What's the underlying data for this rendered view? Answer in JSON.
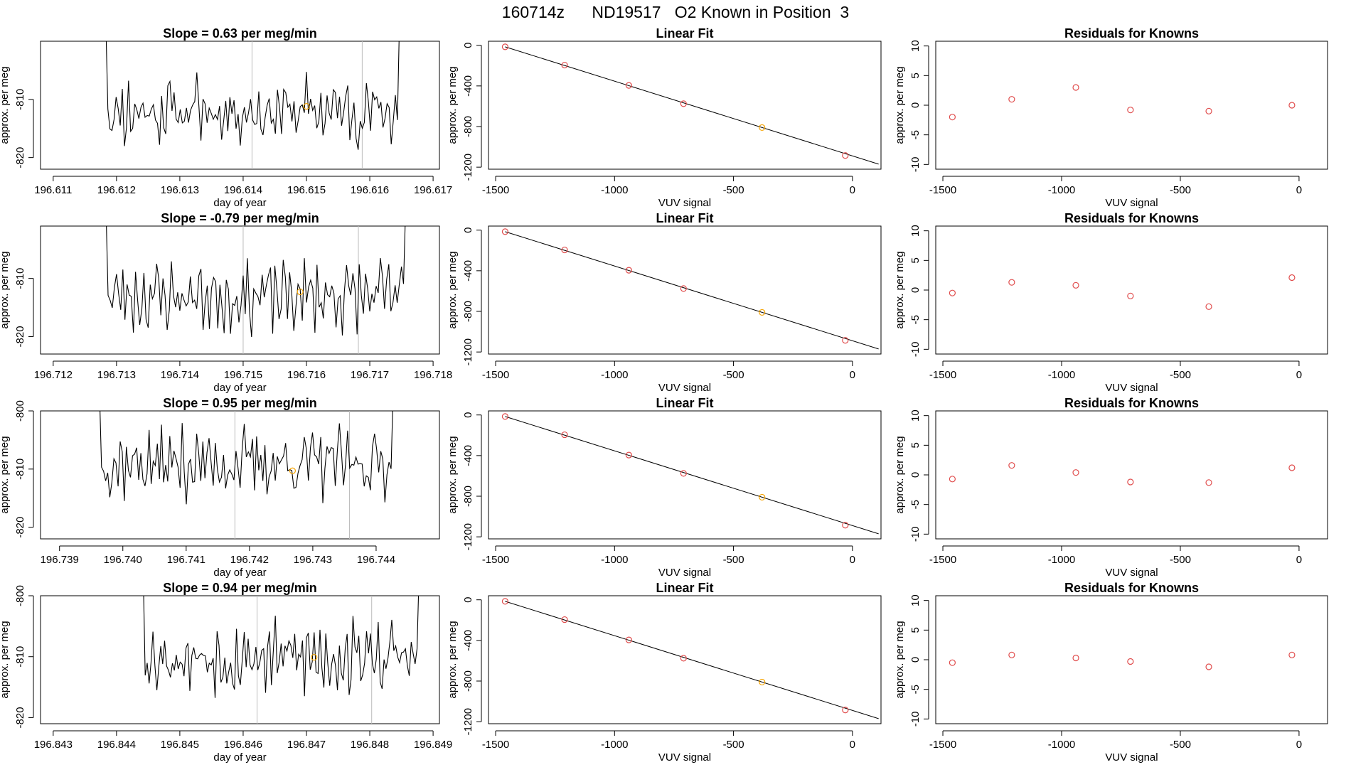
{
  "page_title": "160714z      ND19517   O2 Known in Position  3",
  "colors": {
    "line": "#000000",
    "known": "#e04c4c",
    "highlight": "#f5a300",
    "marker_line": "#bbbbbb",
    "fit_line": "#000000"
  },
  "chart_data": [
    {
      "type": "line",
      "panel": "time-series",
      "row": 0,
      "title": "Slope =  0.63  per meg/min",
      "xlabel": "day of year",
      "ylabel": "approx. per meg",
      "xlim": [
        196.6108,
        196.6171
      ],
      "ylim": [
        -822,
        -800
      ],
      "xticks": [
        "196.611",
        "196.612",
        "196.613",
        "196.614",
        "196.615",
        "196.616",
        "196.617"
      ],
      "xtick_values": [
        196.611,
        196.612,
        196.613,
        196.614,
        196.615,
        196.616,
        196.617
      ],
      "yticks": [
        "-810",
        "-820"
      ],
      "ytick_values": [
        -810,
        -820
      ],
      "x_start": 196.6117,
      "x_end": 196.6166,
      "seed": 11,
      "base": -812,
      "spread": 4.5,
      "vlines": [
        196.61414,
        196.61588
      ],
      "highlight_point": {
        "x": 196.615,
        "y": -811.2
      }
    },
    {
      "type": "line",
      "panel": "time-series",
      "row": 1,
      "title": "Slope =  -0.79  per meg/min",
      "xlabel": "day of year",
      "ylabel": "approx. per meg",
      "xlim": [
        196.7118,
        196.7181
      ],
      "ylim": [
        -823,
        -801
      ],
      "xticks": [
        "196.712",
        "196.713",
        "196.714",
        "196.715",
        "196.716",
        "196.717",
        "196.718"
      ],
      "xtick_values": [
        196.712,
        196.713,
        196.714,
        196.715,
        196.716,
        196.717,
        196.718
      ],
      "yticks": [
        "-810",
        "-820"
      ],
      "ytick_values": [
        -810,
        -820
      ],
      "x_start": 196.7127,
      "x_end": 196.7177,
      "seed": 23,
      "base": -813,
      "spread": 4.5,
      "vlines": [
        196.715,
        196.71682
      ],
      "highlight_point": {
        "x": 196.7159,
        "y": -812.3
      }
    },
    {
      "type": "line",
      "panel": "time-series",
      "row": 2,
      "title": "Slope =  0.95  per meg/min",
      "xlabel": "day of year",
      "ylabel": "approx. per meg",
      "xlim": [
        196.7387,
        196.745
      ],
      "ylim": [
        -822,
        -800
      ],
      "xticks": [
        "196.739",
        "196.740",
        "196.741",
        "196.742",
        "196.743",
        "196.744"
      ],
      "xtick_values": [
        196.739,
        196.74,
        196.741,
        196.742,
        196.743,
        196.744
      ],
      "yticks": [
        "-800",
        "-810",
        "-820"
      ],
      "ytick_values": [
        -800,
        -810,
        -820
      ],
      "x_start": 196.7395,
      "x_end": 196.7444,
      "seed": 37,
      "base": -809,
      "spread": 4.5,
      "vlines": [
        196.74177,
        196.74358
      ],
      "highlight_point": {
        "x": 196.74268,
        "y": -810.3
      }
    },
    {
      "type": "line",
      "panel": "time-series",
      "row": 3,
      "title": "Slope =  0.94  per meg/min",
      "xlabel": "day of year",
      "ylabel": "approx. per meg",
      "xlim": [
        196.8428,
        196.8491
      ],
      "ylim": [
        -821,
        -800
      ],
      "xticks": [
        "196.843",
        "196.844",
        "196.845",
        "196.846",
        "196.847",
        "196.848",
        "196.849"
      ],
      "xtick_values": [
        196.843,
        196.844,
        196.845,
        196.846,
        196.847,
        196.848,
        196.849
      ],
      "yticks": [
        "-800",
        "-810",
        "-820"
      ],
      "ytick_values": [
        -800,
        -810,
        -820
      ],
      "x_start": 196.8443,
      "x_end": 196.8489,
      "seed": 53,
      "base": -810,
      "spread": 4.5,
      "vlines": [
        196.84622,
        196.84803
      ],
      "highlight_point": {
        "x": 196.84712,
        "y": -810.1
      }
    },
    {
      "type": "scatter",
      "panel": "linear-fit",
      "row": 0,
      "title": "Linear Fit",
      "xlabel": "VUV signal",
      "ylabel": "approx. per meg",
      "xlim": [
        -1530,
        120
      ],
      "ylim": [
        -1220,
        40
      ],
      "xticks": [
        "-1500",
        "-1000",
        "-500",
        "0"
      ],
      "xtick_values": [
        -1500,
        -1000,
        -500,
        0
      ],
      "yticks": [
        "0",
        "-400",
        "-800",
        "-1200"
      ],
      "ytick_values": [
        0,
        -400,
        -800,
        -1200
      ],
      "x": [
        -1460,
        -1210,
        -940,
        -710,
        -380,
        -30
      ],
      "y": [
        -15,
        -195,
        -395,
        -575,
        -810,
        -1085
      ],
      "fit": [
        [
          -1460,
          -15
        ],
        [
          110,
          -1170
        ]
      ],
      "highlight_index": 4
    },
    {
      "type": "scatter",
      "panel": "linear-fit",
      "row": 1,
      "title": "Linear Fit",
      "xlabel": "VUV signal",
      "ylabel": "approx. per meg",
      "xlim": [
        -1530,
        120
      ],
      "ylim": [
        -1220,
        40
      ],
      "xticks": [
        "-1500",
        "-1000",
        "-500",
        "0"
      ],
      "xtick_values": [
        -1500,
        -1000,
        -500,
        0
      ],
      "yticks": [
        "0",
        "-400",
        "-800",
        "-1200"
      ],
      "ytick_values": [
        0,
        -400,
        -800,
        -1200
      ],
      "x": [
        -1460,
        -1210,
        -940,
        -710,
        -380,
        -30
      ],
      "y": [
        -15,
        -195,
        -395,
        -575,
        -810,
        -1085
      ],
      "fit": [
        [
          -1460,
          -15
        ],
        [
          110,
          -1170
        ]
      ],
      "highlight_index": 4
    },
    {
      "type": "scatter",
      "panel": "linear-fit",
      "row": 2,
      "title": "Linear Fit",
      "xlabel": "VUV signal",
      "ylabel": "approx. per meg",
      "xlim": [
        -1530,
        120
      ],
      "ylim": [
        -1220,
        40
      ],
      "xticks": [
        "-1500",
        "-1000",
        "-500",
        "0"
      ],
      "xtick_values": [
        -1500,
        -1000,
        -500,
        0
      ],
      "yticks": [
        "0",
        "-400",
        "-800",
        "-1200"
      ],
      "ytick_values": [
        0,
        -400,
        -800,
        -1200
      ],
      "x": [
        -1460,
        -1210,
        -940,
        -710,
        -380,
        -30
      ],
      "y": [
        -15,
        -195,
        -395,
        -575,
        -810,
        -1085
      ],
      "fit": [
        [
          -1460,
          -15
        ],
        [
          110,
          -1170
        ]
      ],
      "highlight_index": 4
    },
    {
      "type": "scatter",
      "panel": "linear-fit",
      "row": 3,
      "title": "Linear Fit",
      "xlabel": "VUV signal",
      "ylabel": "approx. per meg",
      "xlim": [
        -1530,
        120
      ],
      "ylim": [
        -1220,
        40
      ],
      "xticks": [
        "-1500",
        "-1000",
        "-500",
        "0"
      ],
      "xtick_values": [
        -1500,
        -1000,
        -500,
        0
      ],
      "yticks": [
        "0",
        "-400",
        "-800",
        "-1200"
      ],
      "ytick_values": [
        0,
        -400,
        -800,
        -1200
      ],
      "x": [
        -1460,
        -1210,
        -940,
        -710,
        -380,
        -30
      ],
      "y": [
        -15,
        -195,
        -395,
        -575,
        -810,
        -1085
      ],
      "fit": [
        [
          -1460,
          -15
        ],
        [
          110,
          -1170
        ]
      ],
      "highlight_index": 4
    },
    {
      "type": "scatter",
      "panel": "residuals",
      "row": 0,
      "title": "Residuals for Knowns",
      "xlabel": "VUV signal",
      "ylabel": "approx. per meg",
      "xlim": [
        -1530,
        120
      ],
      "ylim": [
        -10.8,
        10.8
      ],
      "xticks": [
        "-1500",
        "-1000",
        "-500",
        "0"
      ],
      "xtick_values": [
        -1500,
        -1000,
        -500,
        0
      ],
      "yticks": [
        "10",
        "5",
        "0",
        "-5",
        "-10"
      ],
      "ytick_values": [
        10,
        5,
        0,
        -5,
        -10
      ],
      "x": [
        -1460,
        -1210,
        -940,
        -710,
        -380,
        -30
      ],
      "y": [
        -2.0,
        1.0,
        3.0,
        -0.8,
        -1.0,
        0.0
      ]
    },
    {
      "type": "scatter",
      "panel": "residuals",
      "row": 1,
      "title": "Residuals for Knowns",
      "xlabel": "VUV signal",
      "ylabel": "approx. per meg",
      "xlim": [
        -1530,
        120
      ],
      "ylim": [
        -10.8,
        10.8
      ],
      "xticks": [
        "-1500",
        "-1000",
        "-500",
        "0"
      ],
      "xtick_values": [
        -1500,
        -1000,
        -500,
        0
      ],
      "yticks": [
        "10",
        "5",
        "0",
        "-5",
        "-10"
      ],
      "ytick_values": [
        10,
        5,
        0,
        -5,
        -10
      ],
      "x": [
        -1460,
        -1210,
        -940,
        -710,
        -380,
        -30
      ],
      "y": [
        -0.5,
        1.3,
        0.8,
        -1.0,
        -2.8,
        2.1
      ]
    },
    {
      "type": "scatter",
      "panel": "residuals",
      "row": 2,
      "title": "Residuals for Knowns",
      "xlabel": "VUV signal",
      "ylabel": "approx. per meg",
      "xlim": [
        -1530,
        120
      ],
      "ylim": [
        -10.8,
        10.8
      ],
      "xticks": [
        "-1500",
        "-1000",
        "-500",
        "0"
      ],
      "xtick_values": [
        -1500,
        -1000,
        -500,
        0
      ],
      "yticks": [
        "10",
        "5",
        "0",
        "-5",
        "-10"
      ],
      "ytick_values": [
        10,
        5,
        0,
        -5,
        -10
      ],
      "x": [
        -1460,
        -1210,
        -940,
        -710,
        -380,
        -30
      ],
      "y": [
        -0.7,
        1.6,
        0.4,
        -1.2,
        -1.3,
        1.2
      ]
    },
    {
      "type": "scatter",
      "panel": "residuals",
      "row": 3,
      "title": "Residuals for Knowns",
      "xlabel": "VUV signal",
      "ylabel": "approx. per meg",
      "xlim": [
        -1530,
        120
      ],
      "ylim": [
        -10.8,
        10.8
      ],
      "xticks": [
        "-1500",
        "-1000",
        "-500",
        "0"
      ],
      "xtick_values": [
        -1500,
        -1000,
        -500,
        0
      ],
      "yticks": [
        "10",
        "5",
        "0",
        "-5",
        "-10"
      ],
      "ytick_values": [
        10,
        5,
        0,
        -5,
        -10
      ],
      "x": [
        -1460,
        -1210,
        -940,
        -710,
        -380,
        -30
      ],
      "y": [
        -0.5,
        0.8,
        0.3,
        -0.3,
        -1.2,
        0.8
      ]
    }
  ]
}
